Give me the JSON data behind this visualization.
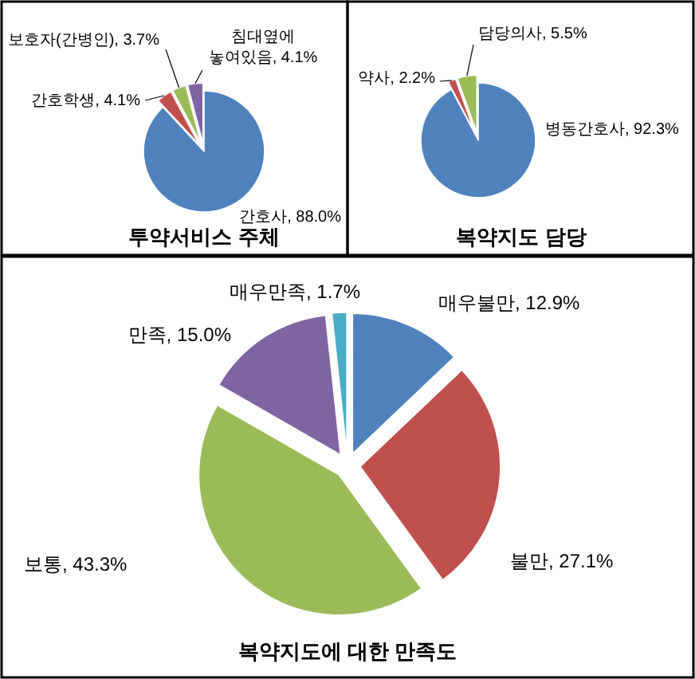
{
  "chart_data": [
    {
      "type": "pie",
      "title": "투약서비스 주체",
      "categories": [
        "간호사",
        "간호학생",
        "보호자(간병인)",
        "침대옆에 놓여있음"
      ],
      "values": [
        88.0,
        4.1,
        3.7,
        4.1
      ],
      "value_labels": [
        "88.0%",
        "4.1%",
        "3.7%",
        "4.1%"
      ],
      "colors": [
        "#4f81bd",
        "#c0504d",
        "#9bbb59",
        "#8064a2"
      ]
    },
    {
      "type": "pie",
      "title": "복약지도 담당",
      "categories": [
        "병동간호사",
        "약사",
        "담당의사"
      ],
      "values": [
        92.3,
        2.2,
        5.5
      ],
      "value_labels": [
        "92.3%",
        "2.2%",
        "5.5%"
      ],
      "colors": [
        "#4f81bd",
        "#c0504d",
        "#9bbb59"
      ]
    },
    {
      "type": "pie",
      "title": "복약지도에 대한 만족도",
      "categories": [
        "매우불만",
        "불만",
        "보통",
        "만족",
        "매우만족"
      ],
      "values": [
        12.9,
        27.1,
        43.3,
        15.0,
        1.7
      ],
      "value_labels": [
        "12.9%",
        "27.1%",
        "43.3%",
        "15.0%",
        "1.7%"
      ],
      "colors": [
        "#4f81bd",
        "#c0504d",
        "#9bbb59",
        "#8064a2",
        "#4bacc6"
      ]
    }
  ]
}
